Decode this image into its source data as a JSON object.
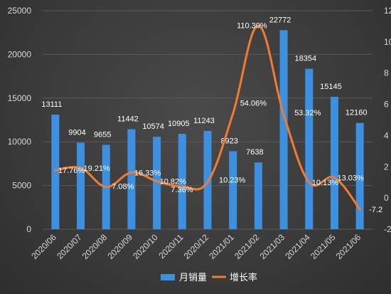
{
  "chart_data": {
    "type": "bar",
    "categories": [
      "2020/06",
      "2020/07",
      "2020/08",
      "2020/09",
      "2020/10",
      "2020/11",
      "2020/12",
      "2021/01",
      "2021/02",
      "2021/03",
      "2021/04",
      "2021/05",
      "2021/06"
    ],
    "series": [
      {
        "name": "月销量",
        "type": "bar",
        "axis": "left",
        "color": "#3d8fe0",
        "values": [
          13111,
          9904,
          9655,
          11442,
          10574,
          10905,
          11243,
          8923,
          7638,
          22772,
          18354,
          15145,
          12160
        ]
      },
      {
        "name": "增长率",
        "type": "line",
        "axis": "right",
        "color": "#ef7d31",
        "values": [
          17.76,
          19.21,
          7.08,
          16.33,
          10.82,
          7.36,
          10.23,
          54.06,
          110.3,
          53.32,
          10.13,
          13.03,
          -7.2
        ],
        "labels": [
          "17.76%",
          "19.21%",
          "7.08%",
          "16.33%",
          "10.82%",
          "7.36%",
          "10.23%",
          "54.06%",
          "110.30%",
          "53.32%",
          "10.13%",
          "13.03%",
          "-7.2"
        ]
      }
    ],
    "y_left": {
      "ticks": [
        "0",
        "5000",
        "10000",
        "15000",
        "20000",
        "25000"
      ],
      "range": [
        0,
        25000
      ]
    },
    "y_right": {
      "ticks": [
        "-2",
        "0",
        "2",
        "4",
        "6",
        "8",
        "10",
        "12"
      ],
      "range": [
        -20,
        120
      ]
    },
    "legend": {
      "position": "bottom"
    },
    "grid": true
  }
}
